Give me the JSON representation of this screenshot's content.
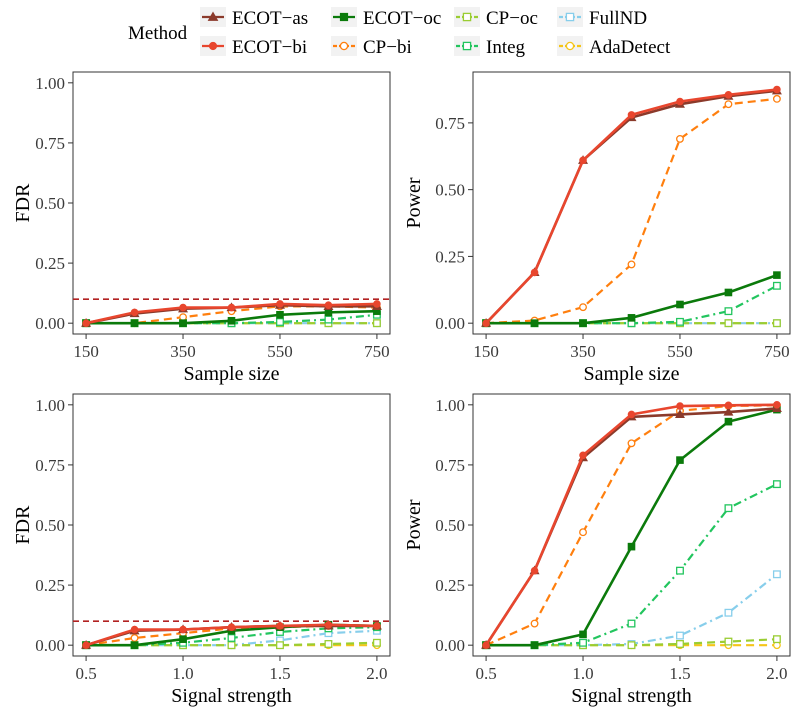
{
  "legend": {
    "title": "Method",
    "items": [
      {
        "name": "ECOT−as",
        "color": "#8B3A2B",
        "dash": "solid",
        "marker": "triangle",
        "open": false
      },
      {
        "name": "ECOT−oc",
        "color": "#0B7A0B",
        "dash": "solid",
        "marker": "square",
        "open": false
      },
      {
        "name": "CP−oc",
        "color": "#9ACD32",
        "dash": "dashed",
        "marker": "square",
        "open": true
      },
      {
        "name": "FullND",
        "color": "#87CEEB",
        "dash": "dashdot",
        "marker": "square",
        "open": true
      },
      {
        "name": "ECOT−bi",
        "color": "#E8462E",
        "dash": "solid",
        "marker": "circle",
        "open": false
      },
      {
        "name": "CP−bi",
        "color": "#FF7F0E",
        "dash": "dashed",
        "marker": "circle",
        "open": true
      },
      {
        "name": "Integ",
        "color": "#22C55E",
        "dash": "dashdot",
        "marker": "square",
        "open": true
      },
      {
        "name": "AdaDetect",
        "color": "#F5C518",
        "dash": "dashed",
        "marker": "circle",
        "open": true
      }
    ]
  },
  "chart_data": [
    {
      "type": "line",
      "id": "fdr-sample",
      "xlabel": "Sample size",
      "ylabel": "FDR",
      "xlim": [
        150,
        750
      ],
      "ylim": [
        0,
        1
      ],
      "xticks": [
        "150",
        "350",
        "550",
        "750"
      ],
      "yticks": [
        "0.00",
        "0.25",
        "0.50",
        "0.75",
        "1.00"
      ],
      "reference_line": 0.1,
      "x": [
        150,
        250,
        350,
        450,
        550,
        650,
        750
      ],
      "series": [
        {
          "name": "ECOT−as",
          "values": [
            0.0,
            0.04,
            0.06,
            0.065,
            0.075,
            0.07,
            0.07
          ]
        },
        {
          "name": "ECOT−bi",
          "values": [
            0.0,
            0.045,
            0.065,
            0.065,
            0.08,
            0.075,
            0.08
          ]
        },
        {
          "name": "ECOT−oc",
          "values": [
            0.0,
            0.0,
            0.0,
            0.01,
            0.035,
            0.045,
            0.05
          ]
        },
        {
          "name": "CP−bi",
          "values": [
            0.0,
            0.0,
            0.025,
            0.05,
            0.07,
            0.07,
            0.065
          ]
        },
        {
          "name": "CP−oc",
          "values": [
            0.0,
            0.0,
            0.0,
            0.0,
            0.0,
            0.0,
            0.0
          ]
        },
        {
          "name": "Integ",
          "values": [
            0.0,
            0.0,
            0.0,
            0.0,
            0.005,
            0.015,
            0.035
          ]
        },
        {
          "name": "FullND",
          "values": [
            0.0,
            0.0,
            0.0,
            0.0,
            0.0,
            0.0,
            0.0
          ]
        },
        {
          "name": "AdaDetect",
          "values": [
            0.0,
            0.0,
            0.0,
            0.0,
            0.0,
            0.0,
            0.0
          ]
        }
      ]
    },
    {
      "type": "line",
      "id": "power-sample",
      "xlabel": "Sample size",
      "ylabel": "Power",
      "xlim": [
        150,
        750
      ],
      "ylim": [
        0,
        0.9
      ],
      "xticks": [
        "150",
        "350",
        "550",
        "750"
      ],
      "yticks": [
        "0.00",
        "0.25",
        "0.50",
        "0.75"
      ],
      "reference_line": null,
      "x": [
        150,
        250,
        350,
        450,
        550,
        650,
        750
      ],
      "series": [
        {
          "name": "ECOT−as",
          "values": [
            0.0,
            0.19,
            0.61,
            0.77,
            0.82,
            0.85,
            0.87
          ]
        },
        {
          "name": "ECOT−bi",
          "values": [
            0.0,
            0.19,
            0.61,
            0.78,
            0.83,
            0.855,
            0.875
          ]
        },
        {
          "name": "ECOT−oc",
          "values": [
            0.0,
            0.0,
            0.0,
            0.02,
            0.07,
            0.115,
            0.18
          ]
        },
        {
          "name": "CP−bi",
          "values": [
            0.0,
            0.01,
            0.06,
            0.22,
            0.69,
            0.82,
            0.84
          ]
        },
        {
          "name": "CP−oc",
          "values": [
            0.0,
            0.0,
            0.0,
            0.0,
            0.0,
            0.0,
            0.0
          ]
        },
        {
          "name": "Integ",
          "values": [
            0.0,
            0.0,
            0.0,
            0.0,
            0.005,
            0.045,
            0.14
          ]
        },
        {
          "name": "FullND",
          "values": [
            0.0,
            0.0,
            0.0,
            0.0,
            0.0,
            0.0,
            0.0
          ]
        },
        {
          "name": "AdaDetect",
          "values": [
            0.0,
            0.0,
            0.0,
            0.0,
            0.0,
            0.0,
            0.0
          ]
        }
      ]
    },
    {
      "type": "line",
      "id": "fdr-signal",
      "xlabel": "Signal strength",
      "ylabel": "FDR",
      "xlim": [
        0.5,
        2.0
      ],
      "ylim": [
        0,
        1
      ],
      "xticks": [
        "0.5",
        "1.0",
        "1.5",
        "2.0"
      ],
      "yticks": [
        "0.00",
        "0.25",
        "0.50",
        "0.75",
        "1.00"
      ],
      "reference_line": 0.1,
      "x": [
        0.5,
        0.75,
        1.0,
        1.25,
        1.5,
        1.75,
        2.0
      ],
      "series": [
        {
          "name": "ECOT−as",
          "values": [
            0.0,
            0.06,
            0.065,
            0.075,
            0.08,
            0.08,
            0.08
          ]
        },
        {
          "name": "ECOT−bi",
          "values": [
            0.0,
            0.065,
            0.065,
            0.075,
            0.08,
            0.085,
            0.08
          ]
        },
        {
          "name": "ECOT−oc",
          "values": [
            0.0,
            0.0,
            0.025,
            0.06,
            0.075,
            0.085,
            0.08
          ]
        },
        {
          "name": "CP−bi",
          "values": [
            0.0,
            0.03,
            0.05,
            0.07,
            0.075,
            0.08,
            0.08
          ]
        },
        {
          "name": "CP−oc",
          "values": [
            0.0,
            0.0,
            0.0,
            0.0,
            0.0,
            0.005,
            0.01
          ]
        },
        {
          "name": "Integ",
          "values": [
            0.0,
            0.0,
            0.01,
            0.03,
            0.055,
            0.07,
            0.075
          ]
        },
        {
          "name": "FullND",
          "values": [
            0.0,
            0.0,
            0.0,
            0.0,
            0.02,
            0.05,
            0.06
          ]
        },
        {
          "name": "AdaDetect",
          "values": [
            0.0,
            0.0,
            0.0,
            0.0,
            0.0,
            0.0,
            0.0
          ]
        }
      ]
    },
    {
      "type": "line",
      "id": "power-signal",
      "xlabel": "Signal strength",
      "ylabel": "Power",
      "xlim": [
        0.5,
        2.0
      ],
      "ylim": [
        0,
        1
      ],
      "xticks": [
        "0.5",
        "1.0",
        "1.5",
        "2.0"
      ],
      "yticks": [
        "0.00",
        "0.25",
        "0.50",
        "0.75",
        "1.00"
      ],
      "reference_line": null,
      "x": [
        0.5,
        0.75,
        1.0,
        1.25,
        1.5,
        1.75,
        2.0
      ],
      "series": [
        {
          "name": "ECOT−as",
          "values": [
            0.0,
            0.31,
            0.78,
            0.95,
            0.96,
            0.97,
            0.985
          ]
        },
        {
          "name": "ECOT−bi",
          "values": [
            0.0,
            0.31,
            0.79,
            0.96,
            0.995,
            0.998,
            1.0
          ]
        },
        {
          "name": "ECOT−oc",
          "values": [
            0.0,
            0.0,
            0.045,
            0.41,
            0.77,
            0.93,
            0.98
          ]
        },
        {
          "name": "CP−bi",
          "values": [
            0.0,
            0.09,
            0.47,
            0.84,
            0.975,
            0.995,
            0.998
          ]
        },
        {
          "name": "CP−oc",
          "values": [
            0.0,
            0.0,
            0.0,
            0.0,
            0.005,
            0.015,
            0.025
          ]
        },
        {
          "name": "Integ",
          "values": [
            0.0,
            0.0,
            0.01,
            0.09,
            0.31,
            0.57,
            0.67
          ]
        },
        {
          "name": "FullND",
          "values": [
            0.0,
            0.0,
            0.0,
            0.005,
            0.04,
            0.135,
            0.295
          ]
        },
        {
          "name": "AdaDetect",
          "values": [
            0.0,
            0.0,
            0.0,
            0.0,
            0.0,
            0.0,
            0.0
          ]
        }
      ]
    }
  ]
}
